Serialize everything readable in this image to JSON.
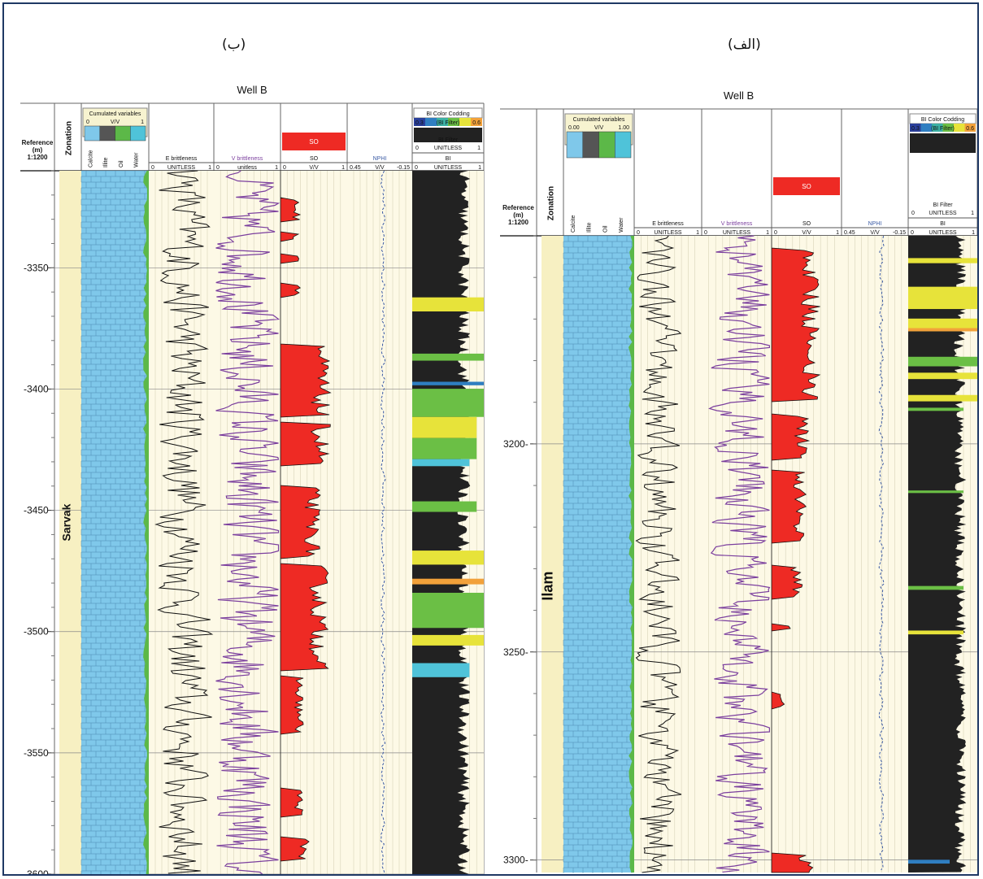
{
  "panel_labels": {
    "right": "(الف)",
    "left": "(ب)"
  },
  "chart_data": [
    {
      "type": "well-log",
      "panel": "(ب)",
      "title": "Well B",
      "reference": {
        "line1": "Reference",
        "line2": "(m)",
        "line3": "1:1200"
      },
      "zonation_header": "Zonation",
      "zone": "Sarvak",
      "depth_ticks": [
        "-3350",
        "-3400",
        "-3450",
        "-3500",
        "-3550",
        "-3600"
      ],
      "depth_range": [
        3310,
        3600
      ],
      "cumulated": {
        "title": "Cumulated variables",
        "unit": "V/V",
        "min": "0",
        "max": "1",
        "components": [
          "Calcite",
          "Illite",
          "Oil",
          "Water"
        ]
      },
      "tracks": [
        {
          "name": "E brittleness",
          "unit": "UNITLESS",
          "min": "0",
          "max": "1"
        },
        {
          "name": "V brittleness",
          "unit": "unitless",
          "min": "0",
          "max": "1"
        },
        {
          "name": "SO",
          "unit": "V/V",
          "min": "0",
          "max": "1",
          "fill": "SO"
        },
        {
          "name": "NPHI",
          "unit": "V/V",
          "min": "0.45",
          "max": "-0.15"
        },
        {
          "name": "BI",
          "unit": "UNITLESS",
          "min": "0",
          "max": "1",
          "filter": "BI Filter",
          "filter_unit": "UNITLESS",
          "filter_min": "0",
          "filter_max": "1",
          "color_title": "BI Color Codding",
          "color_min": "0.3",
          "color_mid": "(BI Filter)",
          "color_max": "0.6"
        }
      ]
    },
    {
      "type": "well-log",
      "panel": "(الف)",
      "title": "Well B",
      "reference": {
        "line1": "Reference",
        "line2": "(m)",
        "line3": "1:1200"
      },
      "zonation_header": "Zonation",
      "zone": "Ilam",
      "depth_ticks": [
        "3200-",
        "3250-",
        "3300-"
      ],
      "depth_range": [
        3150,
        3303
      ],
      "cumulated": {
        "title": "Cumulated variables",
        "unit": "V/V",
        "min": "0.00",
        "max": "1.00",
        "components": [
          "Calcite",
          "Illite",
          "Oil",
          "Water"
        ]
      },
      "tracks": [
        {
          "name": "E brittleness",
          "unit": "UNITLESS",
          "min": "0",
          "max": "1"
        },
        {
          "name": "V brittleness",
          "unit": "UNITLESS",
          "min": "0",
          "max": "1"
        },
        {
          "name": "SO",
          "unit": "V/V",
          "min": "0",
          "max": "1",
          "fill": "SO"
        },
        {
          "name": "NPHI",
          "unit": "V/V",
          "min": "0.45",
          "max": "-0.15"
        },
        {
          "name": "BI",
          "unit": "UNITLESS",
          "min": "0",
          "max": "1",
          "filter": "BI Filter",
          "filter_unit": "UNITLESS",
          "filter_min": "0",
          "filter_max": "1",
          "color_title": "BI Color Codding",
          "color_min": "0.3",
          "color_mid": "(BI Filter)",
          "color_max": "0.6"
        }
      ]
    }
  ],
  "colors": {
    "calcite": "#7fc8ea",
    "illite": "#555555",
    "oil": "#5cb848",
    "water": "#4fc3d9",
    "so": "#ee2a24",
    "bi": "#222222",
    "track_bg": "#fdf9e6",
    "zone_bg": "#f7f0c2",
    "vbrit": "#7b3f9e",
    "npphi": "#3b5ba5",
    "yellow": "#f4ec1c"
  }
}
